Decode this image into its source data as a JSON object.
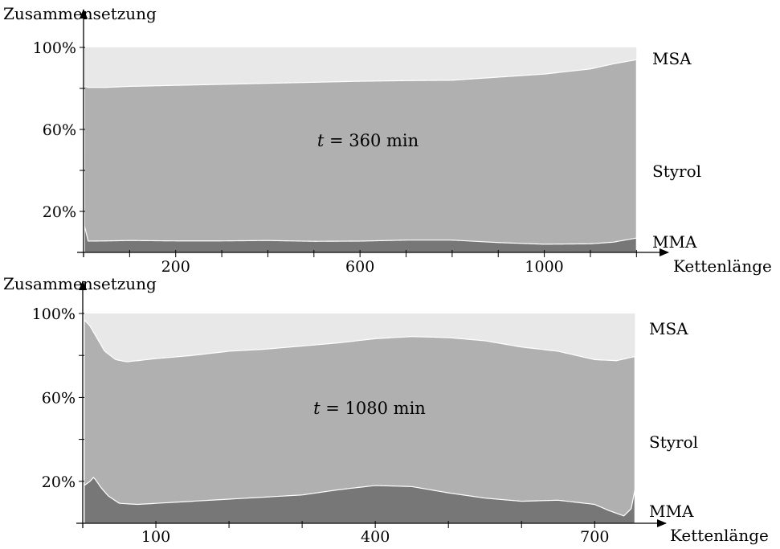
{
  "chart_data": [
    {
      "type": "area",
      "stacked": true,
      "ylabel": "Zusammensetzung",
      "xlabel": "Kettenlänge",
      "annotation": "t = 360 min",
      "annotation_var": "t",
      "annotation_rest": " = 360 min",
      "xlim": [
        0,
        1420
      ],
      "ylim": [
        0,
        100
      ],
      "x_tick_labels": [
        "200",
        "600",
        "1000"
      ],
      "x_tick_values": [
        200,
        600,
        1000
      ],
      "x_minor_ticks": [
        0,
        100,
        200,
        300,
        400,
        500,
        600,
        700,
        800,
        900,
        1000,
        1100,
        1200
      ],
      "y_tick_labels": [
        "20%",
        "60%",
        "100%"
      ],
      "y_tick_values": [
        20,
        60,
        100
      ],
      "y_minor_ticks": [
        0,
        20,
        40,
        60,
        80,
        100
      ],
      "series": [
        {
          "name": "MMA",
          "color": "#777777",
          "x": [
            2,
            10,
            50,
            100,
            200,
            300,
            400,
            500,
            600,
            700,
            800,
            900,
            1000,
            1100,
            1150,
            1200
          ],
          "values": [
            13,
            5.5,
            5.6,
            5.8,
            5.6,
            5.6,
            5.8,
            5.4,
            5.5,
            6.0,
            6.0,
            4.8,
            4.0,
            4.2,
            5.0,
            7.0
          ]
        },
        {
          "name": "Styrol",
          "color": "#b0b0b0",
          "x": [
            2,
            10,
            50,
            100,
            200,
            300,
            400,
            500,
            600,
            700,
            800,
            900,
            1000,
            1100,
            1150,
            1200
          ],
          "values": [
            81,
            80.5,
            80.5,
            81,
            81.5,
            82,
            82.5,
            83,
            83.5,
            83.8,
            84,
            85.5,
            87,
            89.5,
            92,
            94
          ]
        },
        {
          "name": "MSA",
          "color": "#e8e8e8",
          "x": [
            2,
            1200
          ],
          "values": [
            100,
            100
          ]
        }
      ]
    },
    {
      "type": "area",
      "stacked": true,
      "ylabel": "Zusammensetzung",
      "xlabel": "Kettenlänge",
      "annotation": "t = 1080 min",
      "annotation_var": "t",
      "annotation_rest": " = 1080 min",
      "xlim": [
        0,
        800
      ],
      "ylim": [
        0,
        100
      ],
      "x_tick_labels": [
        "100",
        "400",
        "700"
      ],
      "x_tick_values": [
        100,
        400,
        700
      ],
      "x_minor_ticks": [
        0,
        100,
        200,
        300,
        400,
        500,
        600,
        700
      ],
      "y_tick_labels": [
        "20%",
        "60%",
        "100%"
      ],
      "y_tick_values": [
        20,
        60,
        100
      ],
      "y_minor_ticks": [
        0,
        20,
        40,
        60,
        80,
        100
      ],
      "series": [
        {
          "name": "MMA",
          "color": "#777777",
          "x": [
            2,
            10,
            15,
            25,
            35,
            50,
            75,
            100,
            150,
            200,
            300,
            350,
            400,
            450,
            500,
            550,
            600,
            650,
            700,
            720,
            740,
            750,
            755
          ],
          "values": [
            18,
            20,
            22,
            17,
            13,
            9.5,
            9.0,
            9.5,
            10.5,
            11.5,
            13.5,
            16.0,
            18.0,
            17.5,
            14.5,
            12.0,
            10.5,
            11.0,
            9.0,
            6.0,
            3.5,
            7.0,
            16
          ]
        },
        {
          "name": "Styrol",
          "color": "#b0b0b0",
          "x": [
            2,
            10,
            20,
            30,
            45,
            60,
            75,
            100,
            150,
            200,
            250,
            300,
            350,
            400,
            450,
            500,
            550,
            600,
            650,
            700,
            730,
            755
          ],
          "values": [
            97,
            94,
            88,
            82,
            78,
            77,
            77.5,
            78.5,
            80,
            82,
            83,
            84.5,
            86,
            88,
            89,
            88.5,
            87,
            84,
            82,
            78,
            77.5,
            79.5
          ]
        },
        {
          "name": "MSA",
          "color": "#e8e8e8",
          "x": [
            2,
            755
          ],
          "values": [
            100,
            100
          ]
        }
      ]
    }
  ]
}
